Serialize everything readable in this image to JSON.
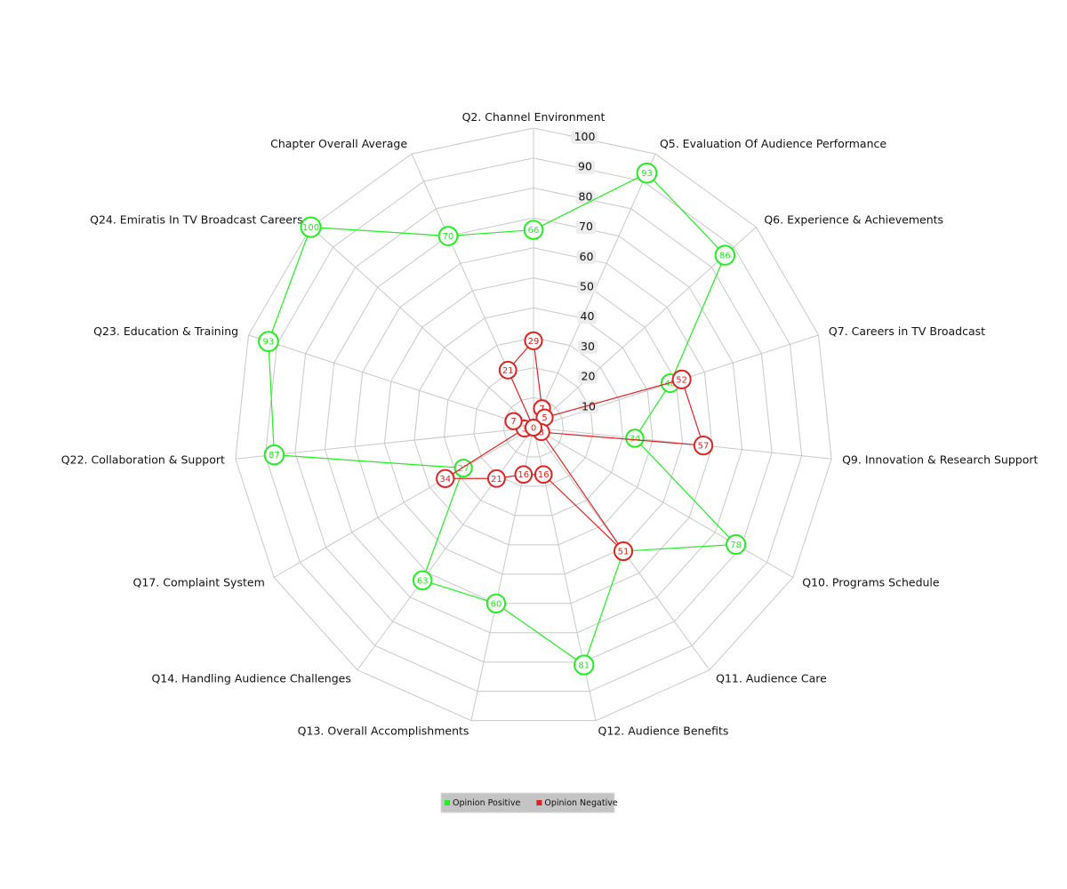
{
  "chart_data": {
    "type": "radar",
    "axes": [
      "Q2. Channel Environment",
      "Q5. Evaluation Of Audience Performance",
      "Q6. Experience & Achievements",
      "Q7. Careers in TV Broadcast",
      "Q9. Innovation & Research Support",
      "Q10. Programs Schedule",
      "Q11. Audience Care",
      "Q12. Audience Benefits",
      "Q13. Overall Accomplishments",
      "Q14. Handling Audience Challenges",
      "Q17. Complaint System",
      "Q22. Collaboration & Support",
      "Q23. Education & Training",
      "Q24. Emiratis In TV Broadcast Careers",
      "Chapter Overall Average"
    ],
    "ticks": [
      "10",
      "20",
      "30",
      "40",
      "50",
      "60",
      "70",
      "80",
      "90",
      "100"
    ],
    "range": [
      0,
      100
    ],
    "series": [
      {
        "name": "Opinion Positive",
        "color": "#22ee22",
        "values": [
          66,
          93,
          86,
          48,
          34,
          78,
          51,
          81,
          60,
          63,
          27,
          87,
          93,
          100,
          70
        ]
      },
      {
        "name": "Opinion Negative",
        "color": "#dd2222",
        "values": [
          29,
          7,
          5,
          52,
          57,
          3,
          51,
          16,
          16,
          21,
          34,
          3,
          7,
          0,
          21
        ]
      }
    ],
    "legend": "bottom-center"
  }
}
